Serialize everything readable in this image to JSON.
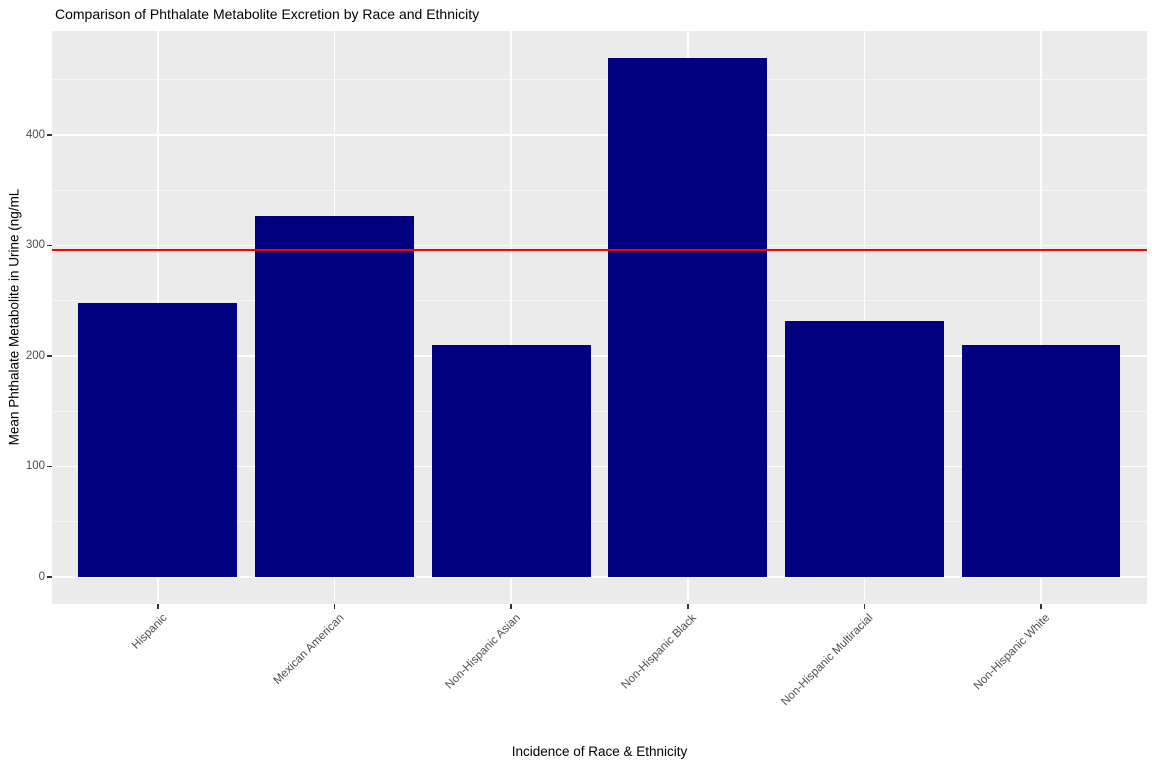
{
  "chart_data": {
    "type": "bar",
    "title": "Comparison of Phthalate Metabolite Excretion by Race and Ethnicity",
    "xlabel": "Incidence of Race & Ethnicity",
    "ylabel": "Mean Phthalate Metabolite in Urine (ng/mL",
    "categories": [
      "Hispanic",
      "Mexican American",
      "Non-Hispanic Asian",
      "Non-Hispanic Black",
      "Non-Hispanic Multiracial",
      "Non-Hispanic White"
    ],
    "values": [
      248,
      327,
      210,
      470,
      232,
      210
    ],
    "y_ticks": [
      0,
      100,
      200,
      300,
      400
    ],
    "y_minor_ticks": [
      50,
      150,
      250,
      350,
      450
    ],
    "ylim": [
      -23,
      494
    ],
    "grid": true,
    "legend": "none",
    "reference_line": {
      "value": 296,
      "color": "#ff0000"
    },
    "style": {
      "bar_color": "#000080",
      "panel_background": "#ebebeb",
      "major_grid_color": "#ffffff",
      "minor_grid_color": "#ffffff99",
      "tick_mark_color": "#333333",
      "tick_label_color": "#4d4d4d",
      "axis_title_color": "#000000",
      "figure_background": "#ffffff"
    }
  }
}
